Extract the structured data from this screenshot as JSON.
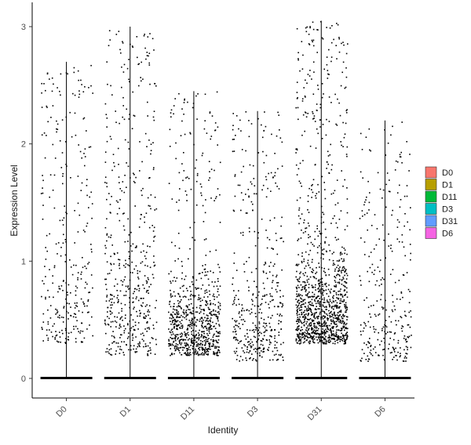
{
  "chart_data": {
    "type": "scatter",
    "subtype": "violin-jitter",
    "title": "",
    "xlabel": "Identity",
    "ylabel": "Expression Level",
    "categories": [
      "D0",
      "D1",
      "D11",
      "D3",
      "D31",
      "D6"
    ],
    "ylim": [
      -0.15,
      3.06
    ],
    "yticks": [
      0,
      1,
      2,
      3
    ],
    "grid": false,
    "legend": {
      "placement": "right",
      "entries": [
        {
          "label": "D0",
          "color": "#F8766D"
        },
        {
          "label": "D1",
          "color": "#B79F00"
        },
        {
          "label": "D11",
          "color": "#00BA38"
        },
        {
          "label": "D3",
          "color": "#00BFC4"
        },
        {
          "label": "D31",
          "color": "#619CFF"
        },
        {
          "label": "D6",
          "color": "#F564E3"
        }
      ]
    },
    "series": [
      {
        "category": "D0",
        "max": 2.7,
        "bulk_low": 0.3,
        "bulk_high": 1.2,
        "dense_points": 120,
        "sparse_points": 180
      },
      {
        "category": "D1",
        "max": 3.0,
        "bulk_low": 0.2,
        "bulk_high": 1.6,
        "dense_points": 260,
        "sparse_points": 240
      },
      {
        "category": "D11",
        "max": 2.45,
        "bulk_low": 0.2,
        "bulk_high": 0.9,
        "dense_points": 620,
        "sparse_points": 170
      },
      {
        "category": "D3",
        "max": 2.28,
        "bulk_low": 0.15,
        "bulk_high": 1.0,
        "dense_points": 230,
        "sparse_points": 190
      },
      {
        "category": "D31",
        "max": 3.05,
        "bulk_low": 0.3,
        "bulk_high": 1.1,
        "dense_points": 900,
        "sparse_points": 330
      },
      {
        "category": "D6",
        "max": 2.2,
        "bulk_low": 0.15,
        "bulk_high": 1.0,
        "dense_points": 140,
        "sparse_points": 150
      }
    ]
  }
}
